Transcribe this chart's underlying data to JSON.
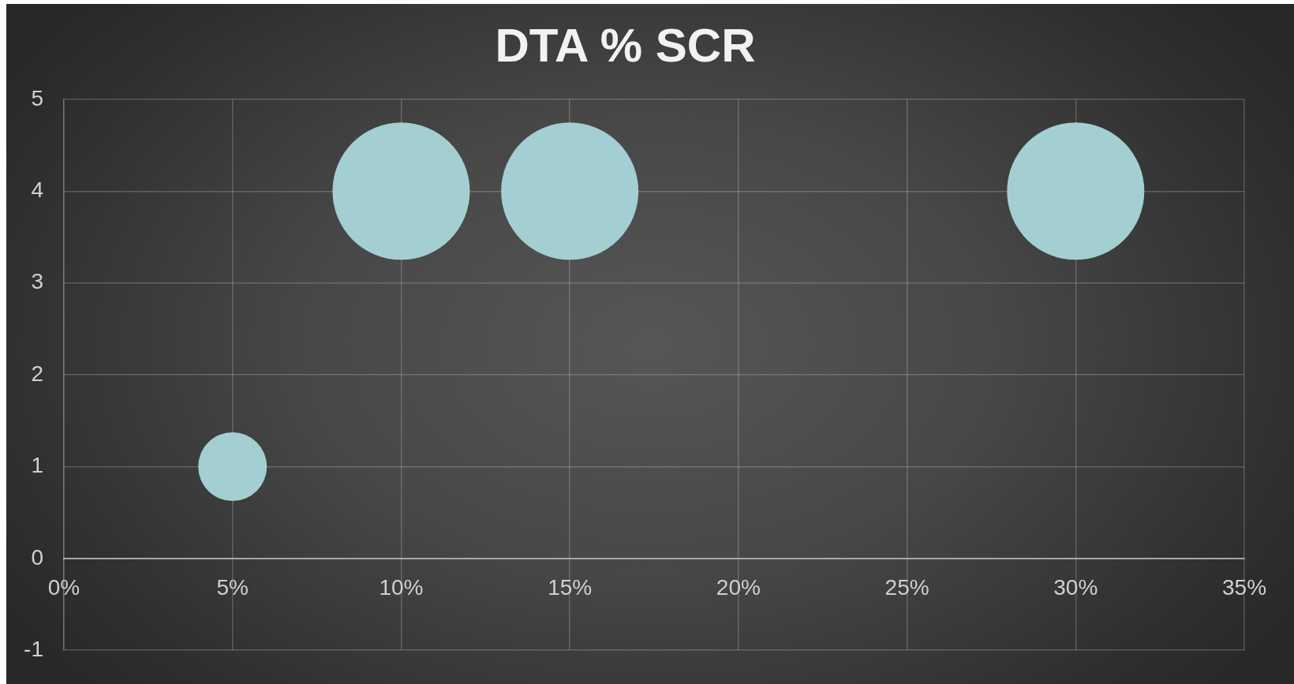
{
  "chart_data": {
    "type": "bubble",
    "title": "DTA % SCR",
    "x": [
      5,
      10,
      15,
      30
    ],
    "values": [
      1,
      4,
      4,
      4
    ],
    "sizes": [
      0.25,
      1,
      1,
      1
    ],
    "color": "#a3cfd2",
    "xlim": [
      0,
      35
    ],
    "xticks": [
      {
        "value": 0,
        "label": "0%"
      },
      {
        "value": 5,
        "label": "5%"
      },
      {
        "value": 10,
        "label": "10%"
      },
      {
        "value": 15,
        "label": "15%"
      },
      {
        "value": 20,
        "label": "20%"
      },
      {
        "value": 25,
        "label": "25%"
      },
      {
        "value": 30,
        "label": "30%"
      },
      {
        "value": 35,
        "label": "35%"
      }
    ],
    "ylim": [
      -1,
      5
    ],
    "yticks": [
      -1,
      0,
      1,
      2,
      3,
      4,
      5
    ],
    "grid": true
  }
}
